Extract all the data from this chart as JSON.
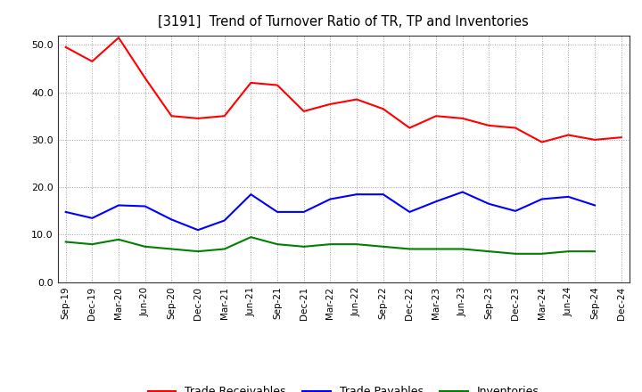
{
  "title": "[3191]  Trend of Turnover Ratio of TR, TP and Inventories",
  "x_labels": [
    "Sep-19",
    "Dec-19",
    "Mar-20",
    "Jun-20",
    "Sep-20",
    "Dec-20",
    "Mar-21",
    "Jun-21",
    "Sep-21",
    "Dec-21",
    "Mar-22",
    "Jun-22",
    "Sep-22",
    "Dec-22",
    "Mar-23",
    "Jun-23",
    "Sep-23",
    "Dec-23",
    "Mar-24",
    "Jun-24",
    "Sep-24",
    "Dec-24"
  ],
  "trade_receivables": [
    49.5,
    46.5,
    51.5,
    43.0,
    35.0,
    34.5,
    35.0,
    42.0,
    41.5,
    36.0,
    37.5,
    38.5,
    36.5,
    32.5,
    35.0,
    34.5,
    33.0,
    32.5,
    29.5,
    31.0,
    30.0,
    30.5
  ],
  "trade_payables": [
    14.8,
    13.5,
    16.2,
    16.0,
    13.2,
    11.0,
    13.0,
    18.5,
    14.8,
    14.8,
    17.5,
    18.5,
    18.5,
    14.8,
    17.0,
    19.0,
    16.5,
    15.0,
    17.5,
    18.0,
    16.2,
    null
  ],
  "inventories": [
    8.5,
    8.0,
    9.0,
    7.5,
    7.0,
    6.5,
    7.0,
    9.5,
    8.0,
    7.5,
    8.0,
    8.0,
    7.5,
    7.0,
    7.0,
    7.0,
    6.5,
    6.0,
    6.0,
    6.5,
    6.5,
    null
  ],
  "ylim": [
    0,
    52
  ],
  "yticks": [
    0.0,
    10.0,
    20.0,
    30.0,
    40.0,
    50.0
  ],
  "tr_color": "#ff0000",
  "tp_color": "#0000ff",
  "inv_color": "#008000",
  "legend_labels": [
    "Trade Receivables",
    "Trade Payables",
    "Inventories"
  ],
  "background_color": "#ffffff",
  "grid_color": "#888888"
}
